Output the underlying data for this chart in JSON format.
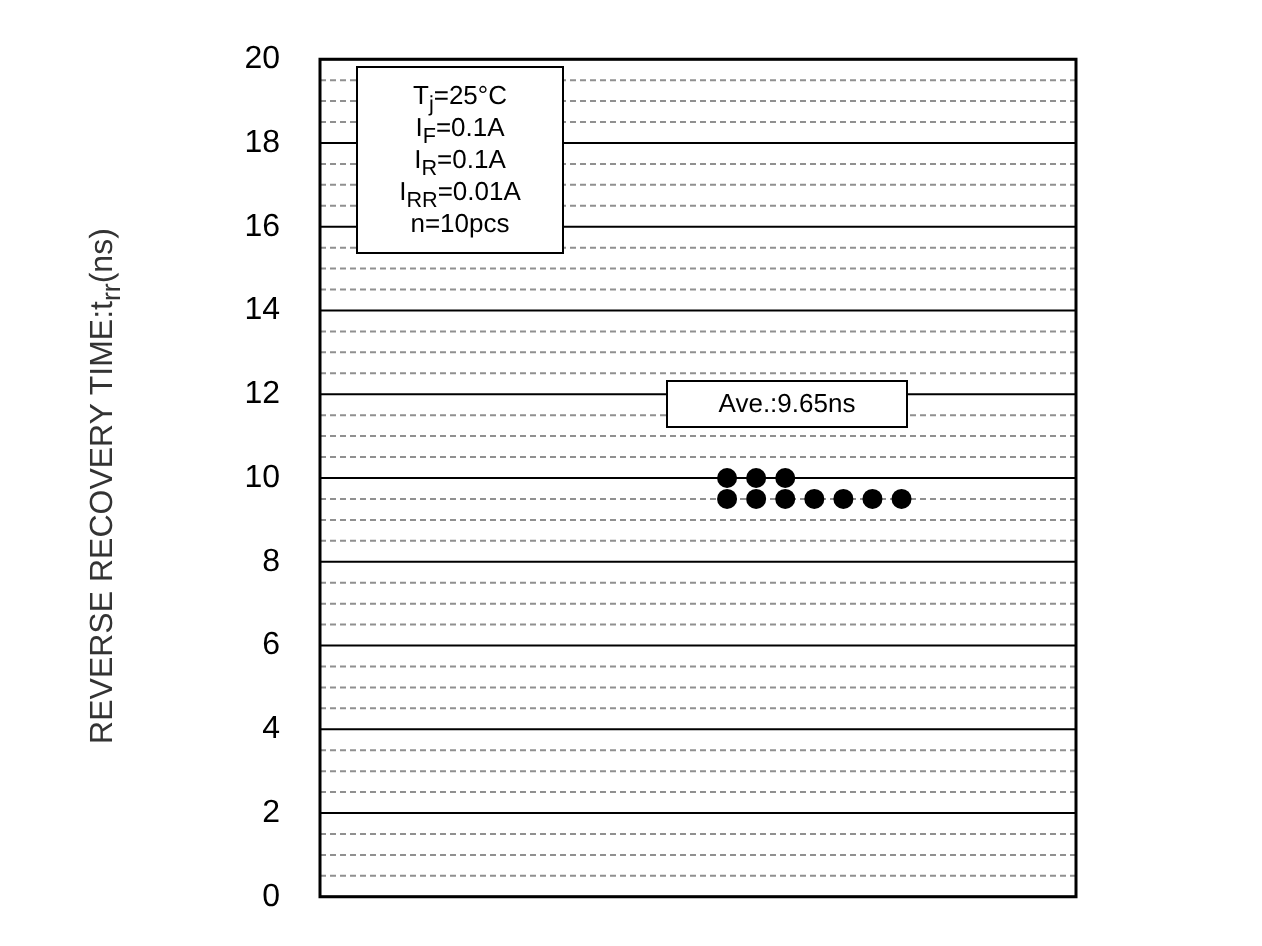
{
  "chart_data": {
    "type": "scatter",
    "ylabel": "REVERSE RECOVERY TIME:t$_{rr}$(ns)",
    "categories": [
      null,
      null,
      null,
      null,
      null,
      null,
      null,
      null,
      null,
      null,
      null,
      null,
      null,
      null,
      null,
      null,
      null,
      null,
      null,
      null,
      null,
      null,
      null,
      null,
      null,
      null,
      null
    ],
    "series": [
      {
        "color": "#000000",
        "values": [
          null,
          null,
          null,
          null,
          null,
          null,
          null,
          null,
          null,
          null,
          null,
          null,
          null,
          null,
          10,
          10,
          10,
          null,
          null,
          null,
          null,
          null,
          null,
          null,
          null,
          null,
          null
        ]
      },
      {
        "color": "#000000",
        "values": [
          null,
          null,
          null,
          null,
          null,
          null,
          null,
          null,
          null,
          null,
          null,
          null,
          null,
          null,
          9.5,
          9.5,
          9.5,
          9.5,
          9.5,
          9.5,
          9.5,
          null,
          null,
          null,
          null,
          null,
          null
        ]
      }
    ],
    "ylim": [
      0,
      20
    ],
    "yticks": [
      0,
      {
        "value": 0.5,
        "label": null
      },
      {
        "value": 1,
        "label": null
      },
      {
        "value": 1.5,
        "label": null
      },
      2,
      {
        "value": 2.5,
        "label": null
      },
      {
        "value": 3,
        "label": null
      },
      {
        "value": 3.5,
        "label": null
      },
      4,
      {
        "value": 4.5,
        "label": null
      },
      {
        "value": 5,
        "label": null
      },
      {
        "value": 5.5,
        "label": null
      },
      6,
      {
        "value": 6.5,
        "label": null
      },
      {
        "value": 7,
        "label": null
      },
      {
        "value": 7.5,
        "label": null
      },
      8,
      {
        "value": 8.5,
        "label": null
      },
      {
        "value": 9,
        "label": null
      },
      {
        "value": 9.5,
        "label": null
      },
      10,
      {
        "value": 10.5,
        "label": null
      },
      {
        "value": 11,
        "label": null
      },
      {
        "value": 11.5,
        "label": null
      },
      12,
      {
        "value": 12.5,
        "label": null
      },
      {
        "value": 13,
        "label": null
      },
      {
        "value": 13.5,
        "label": null
      },
      14,
      {
        "value": 14.5,
        "label": null
      },
      {
        "value": 15,
        "label": null
      },
      {
        "value": 15.5,
        "label": null
      },
      16,
      {
        "value": 16.5,
        "label": null
      },
      {
        "value": 17,
        "label": null
      },
      {
        "value": 17.5,
        "label": null
      },
      18,
      {
        "value": 18.5,
        "label": null
      },
      {
        "value": 19,
        "label": null
      },
      {
        "value": 19.5,
        "label": null
      },
      20
    ],
    "tick_labels": "y",
    "grid": "y",
    "marker": "circle",
    "annotations": [
      "T$_{j}$=25°C\nI$_{F}$=0.1A\nI$_{R}$=0.1A\nI$_{RR}$=0.01A\nn=10pcs",
      "Ave.:9.65ns"
    ]
  }
}
